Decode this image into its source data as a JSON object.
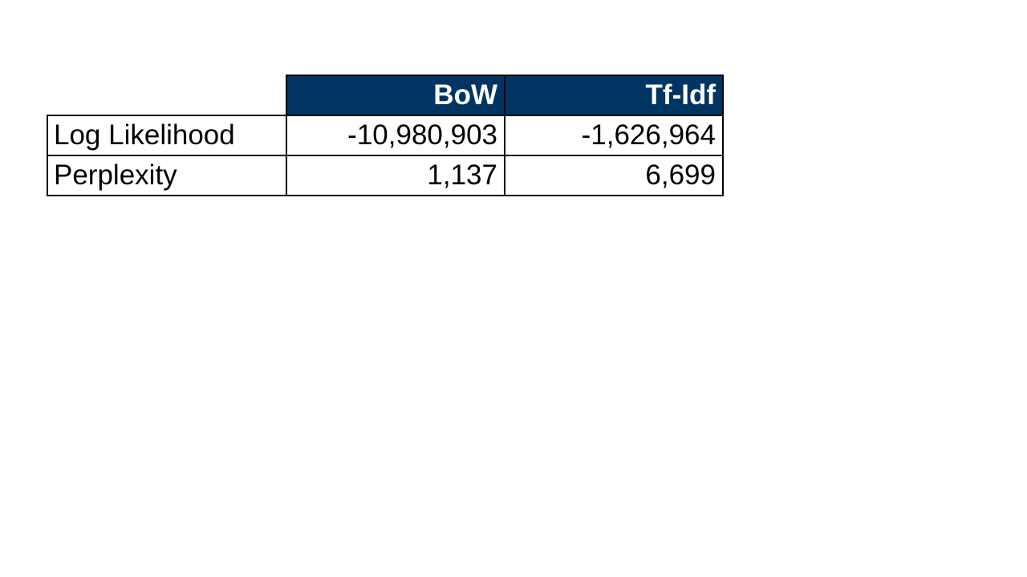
{
  "table": {
    "columns": [
      "BoW",
      "Tf-Idf"
    ],
    "rows": [
      {
        "label": "Log Likelihood",
        "values": [
          "-10,980,903",
          "-1,626,964"
        ]
      },
      {
        "label": "Perplexity",
        "values": [
          "1,137",
          "6,699"
        ]
      }
    ]
  },
  "colors": {
    "header_background": "#003462",
    "header_text": "#ffffff",
    "border": "#000000",
    "page_background": "#ffffff"
  }
}
